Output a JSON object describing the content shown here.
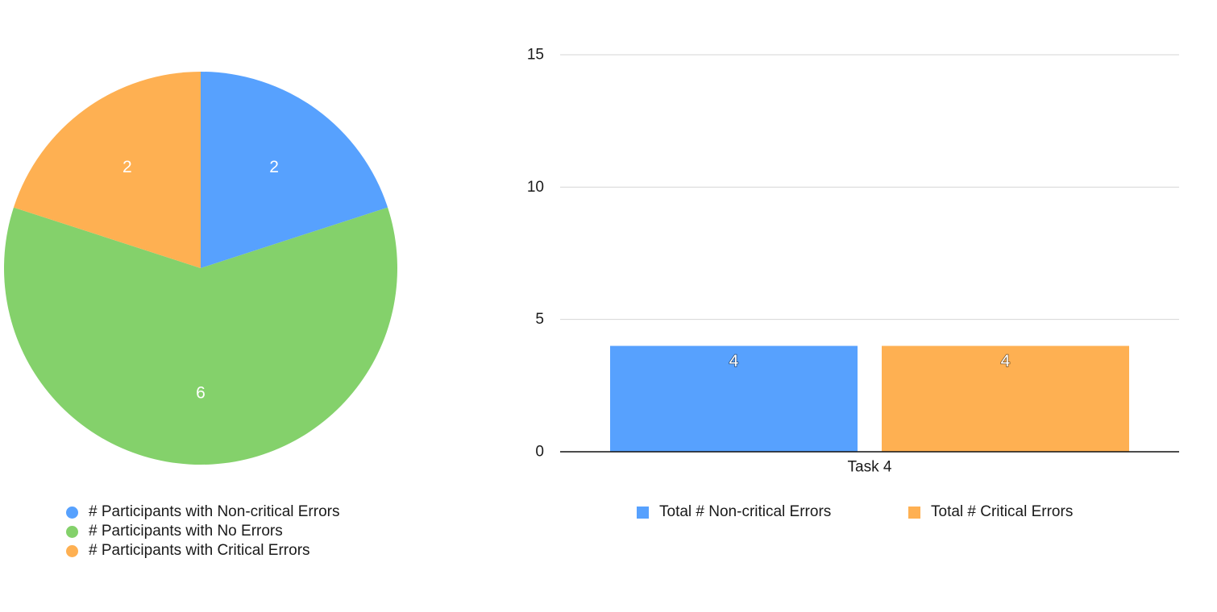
{
  "chart_data": [
    {
      "type": "pie",
      "title": "",
      "slices": [
        {
          "label": "# Participants with Non-critical Errors",
          "value": 2,
          "color": "#57a1fe"
        },
        {
          "label": "# Participants with No Errors",
          "value": 6,
          "color": "#84d16b"
        },
        {
          "label": "# Participants with Critical Errors",
          "value": 2,
          "color": "#feb052"
        }
      ],
      "data_labels": true,
      "legend_position": "bottom"
    },
    {
      "type": "bar",
      "title": "",
      "categories": [
        "Task 4"
      ],
      "series": [
        {
          "name": "Total # Non-critical Errors",
          "values": [
            4
          ],
          "color": "#57a1fe"
        },
        {
          "name": "Total # Critical Errors",
          "values": [
            4
          ],
          "color": "#feb052"
        }
      ],
      "xlabel": "",
      "ylabel": "",
      "ylim": [
        0,
        15
      ],
      "yticks": [
        0,
        5,
        10,
        15
      ],
      "grid": true,
      "data_labels": true,
      "legend_position": "bottom"
    }
  ]
}
